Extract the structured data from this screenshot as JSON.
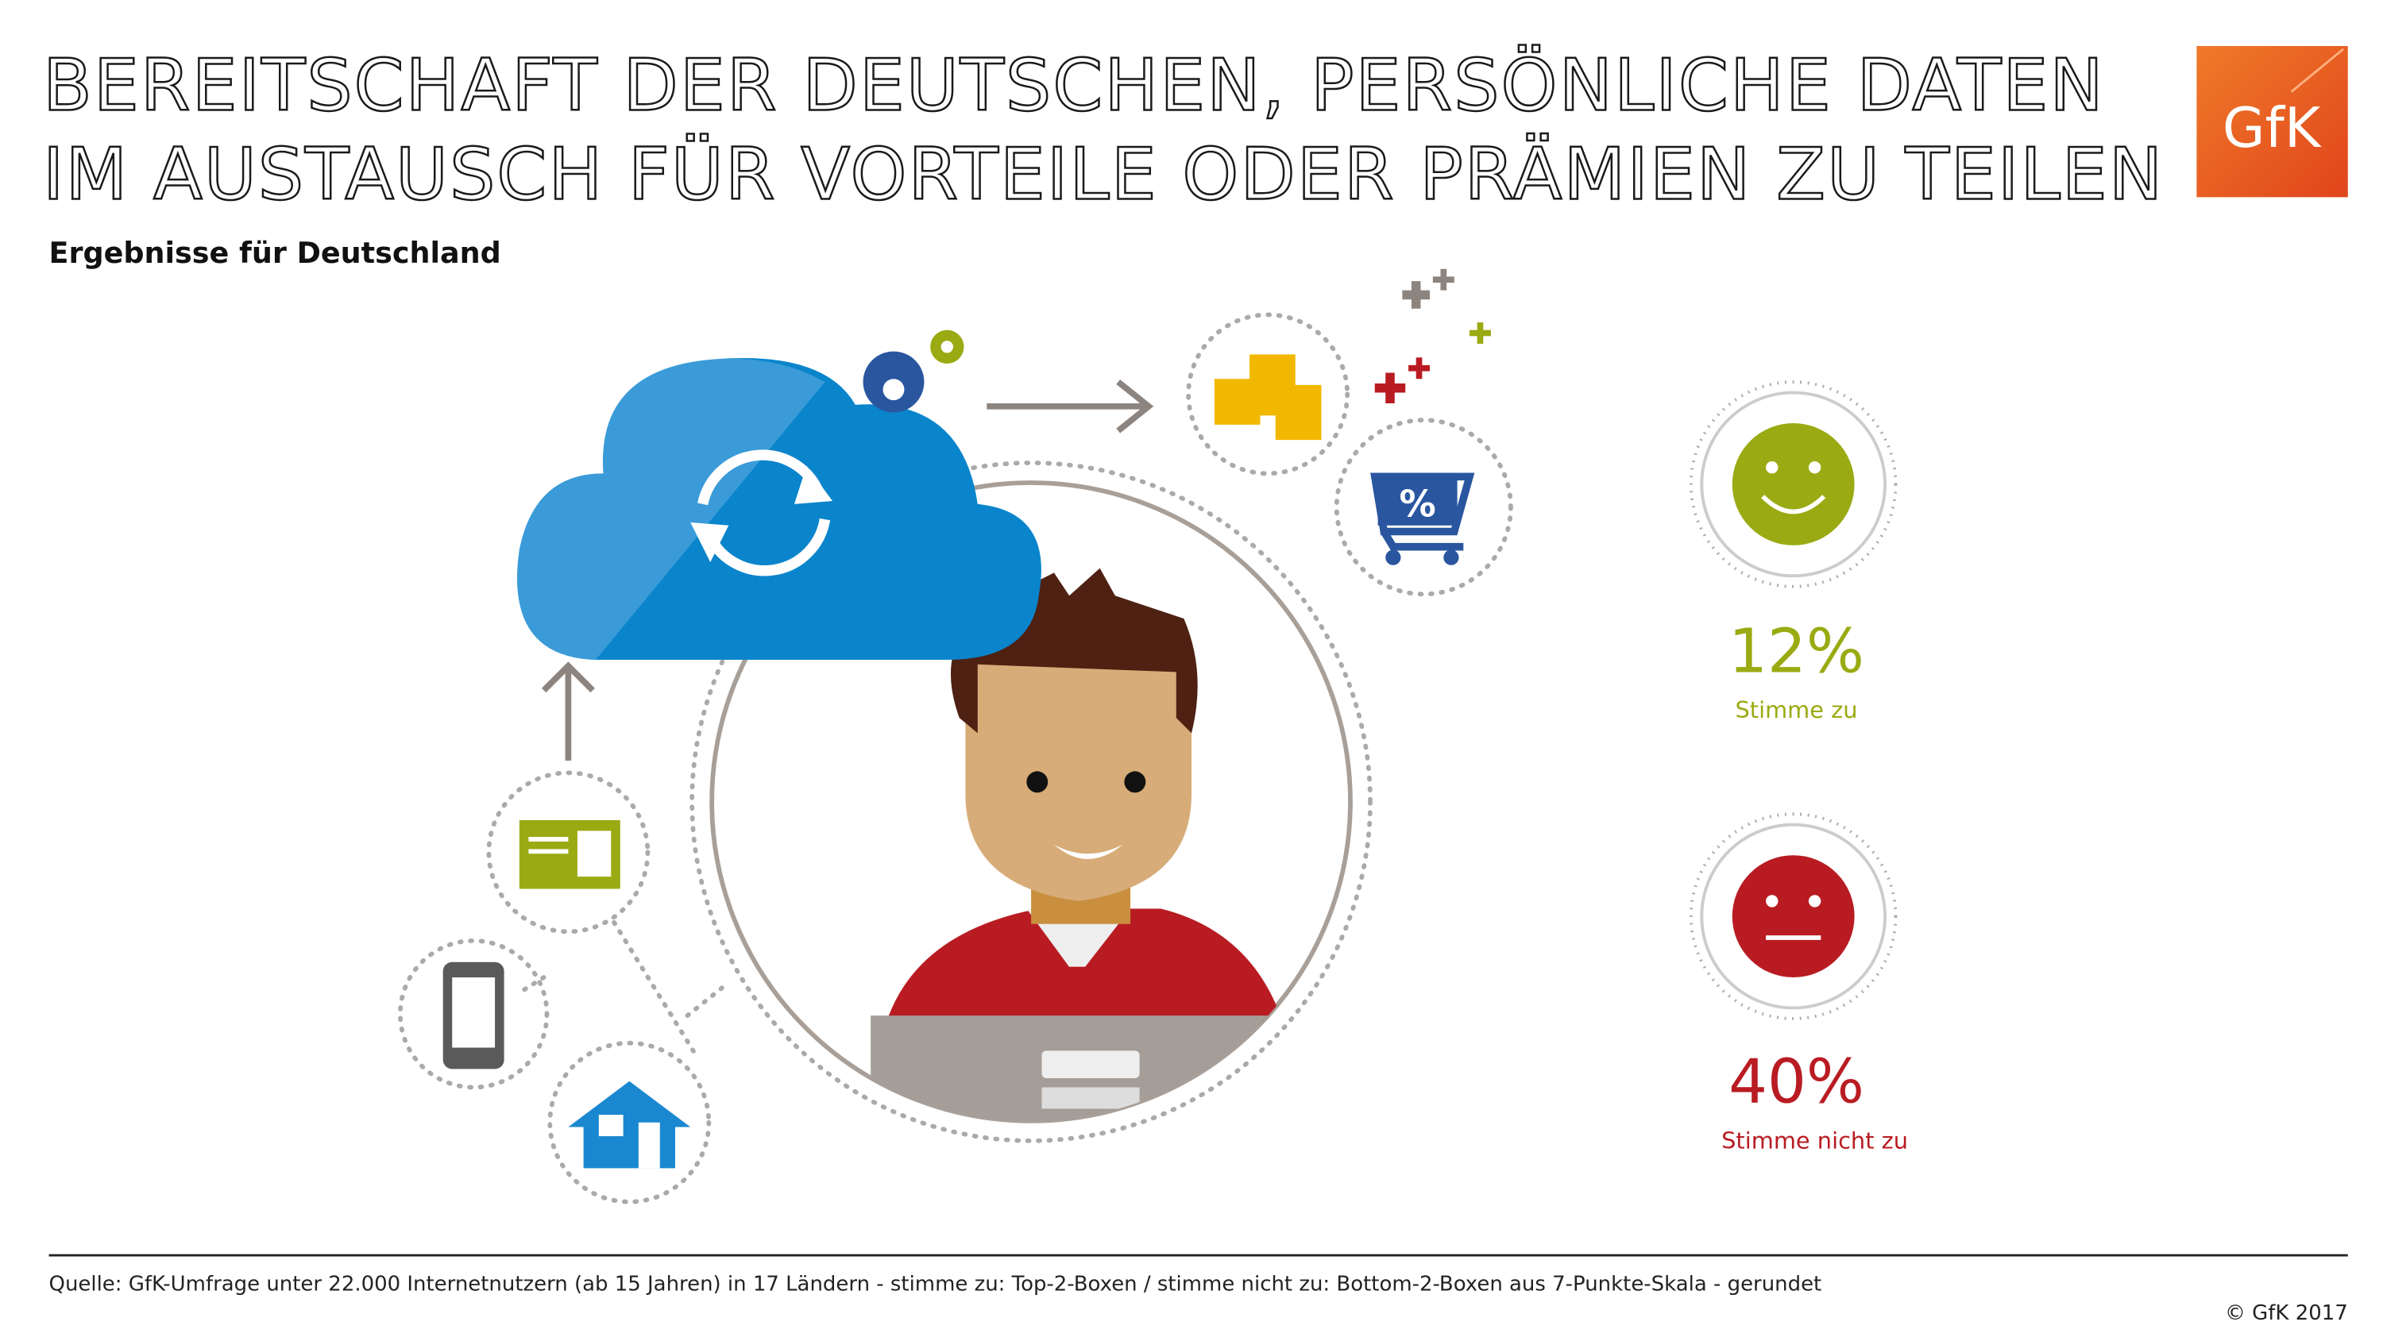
{
  "header": {
    "title_lines": [
      "BEREITSCHAFT DER DEUTSCHEN, PERSÖNLICHE DATEN",
      "IM AUSTAUSCH FÜR VORTEILE ODER PRÄMIEN ZU TEILEN"
    ],
    "subtitle": "Ergebnisse für Deutschland",
    "logo": "GfK"
  },
  "results": [
    {
      "value": "12%",
      "label": "Stimme zu"
    },
    {
      "value": "40%",
      "label": "Stimme nicht zu"
    }
  ],
  "footer": {
    "source": "Quelle: GfK-Umfrage unter 22.000 Internetnutzern (ab 15 Jahren) in 17 Ländern - stimme zu: Top-2-Boxen / stimme nicht zu: Bottom-2-Boxen aus 7-Punkte-Skala - gerundet",
    "copyright": "© GfK 2017"
  }
}
